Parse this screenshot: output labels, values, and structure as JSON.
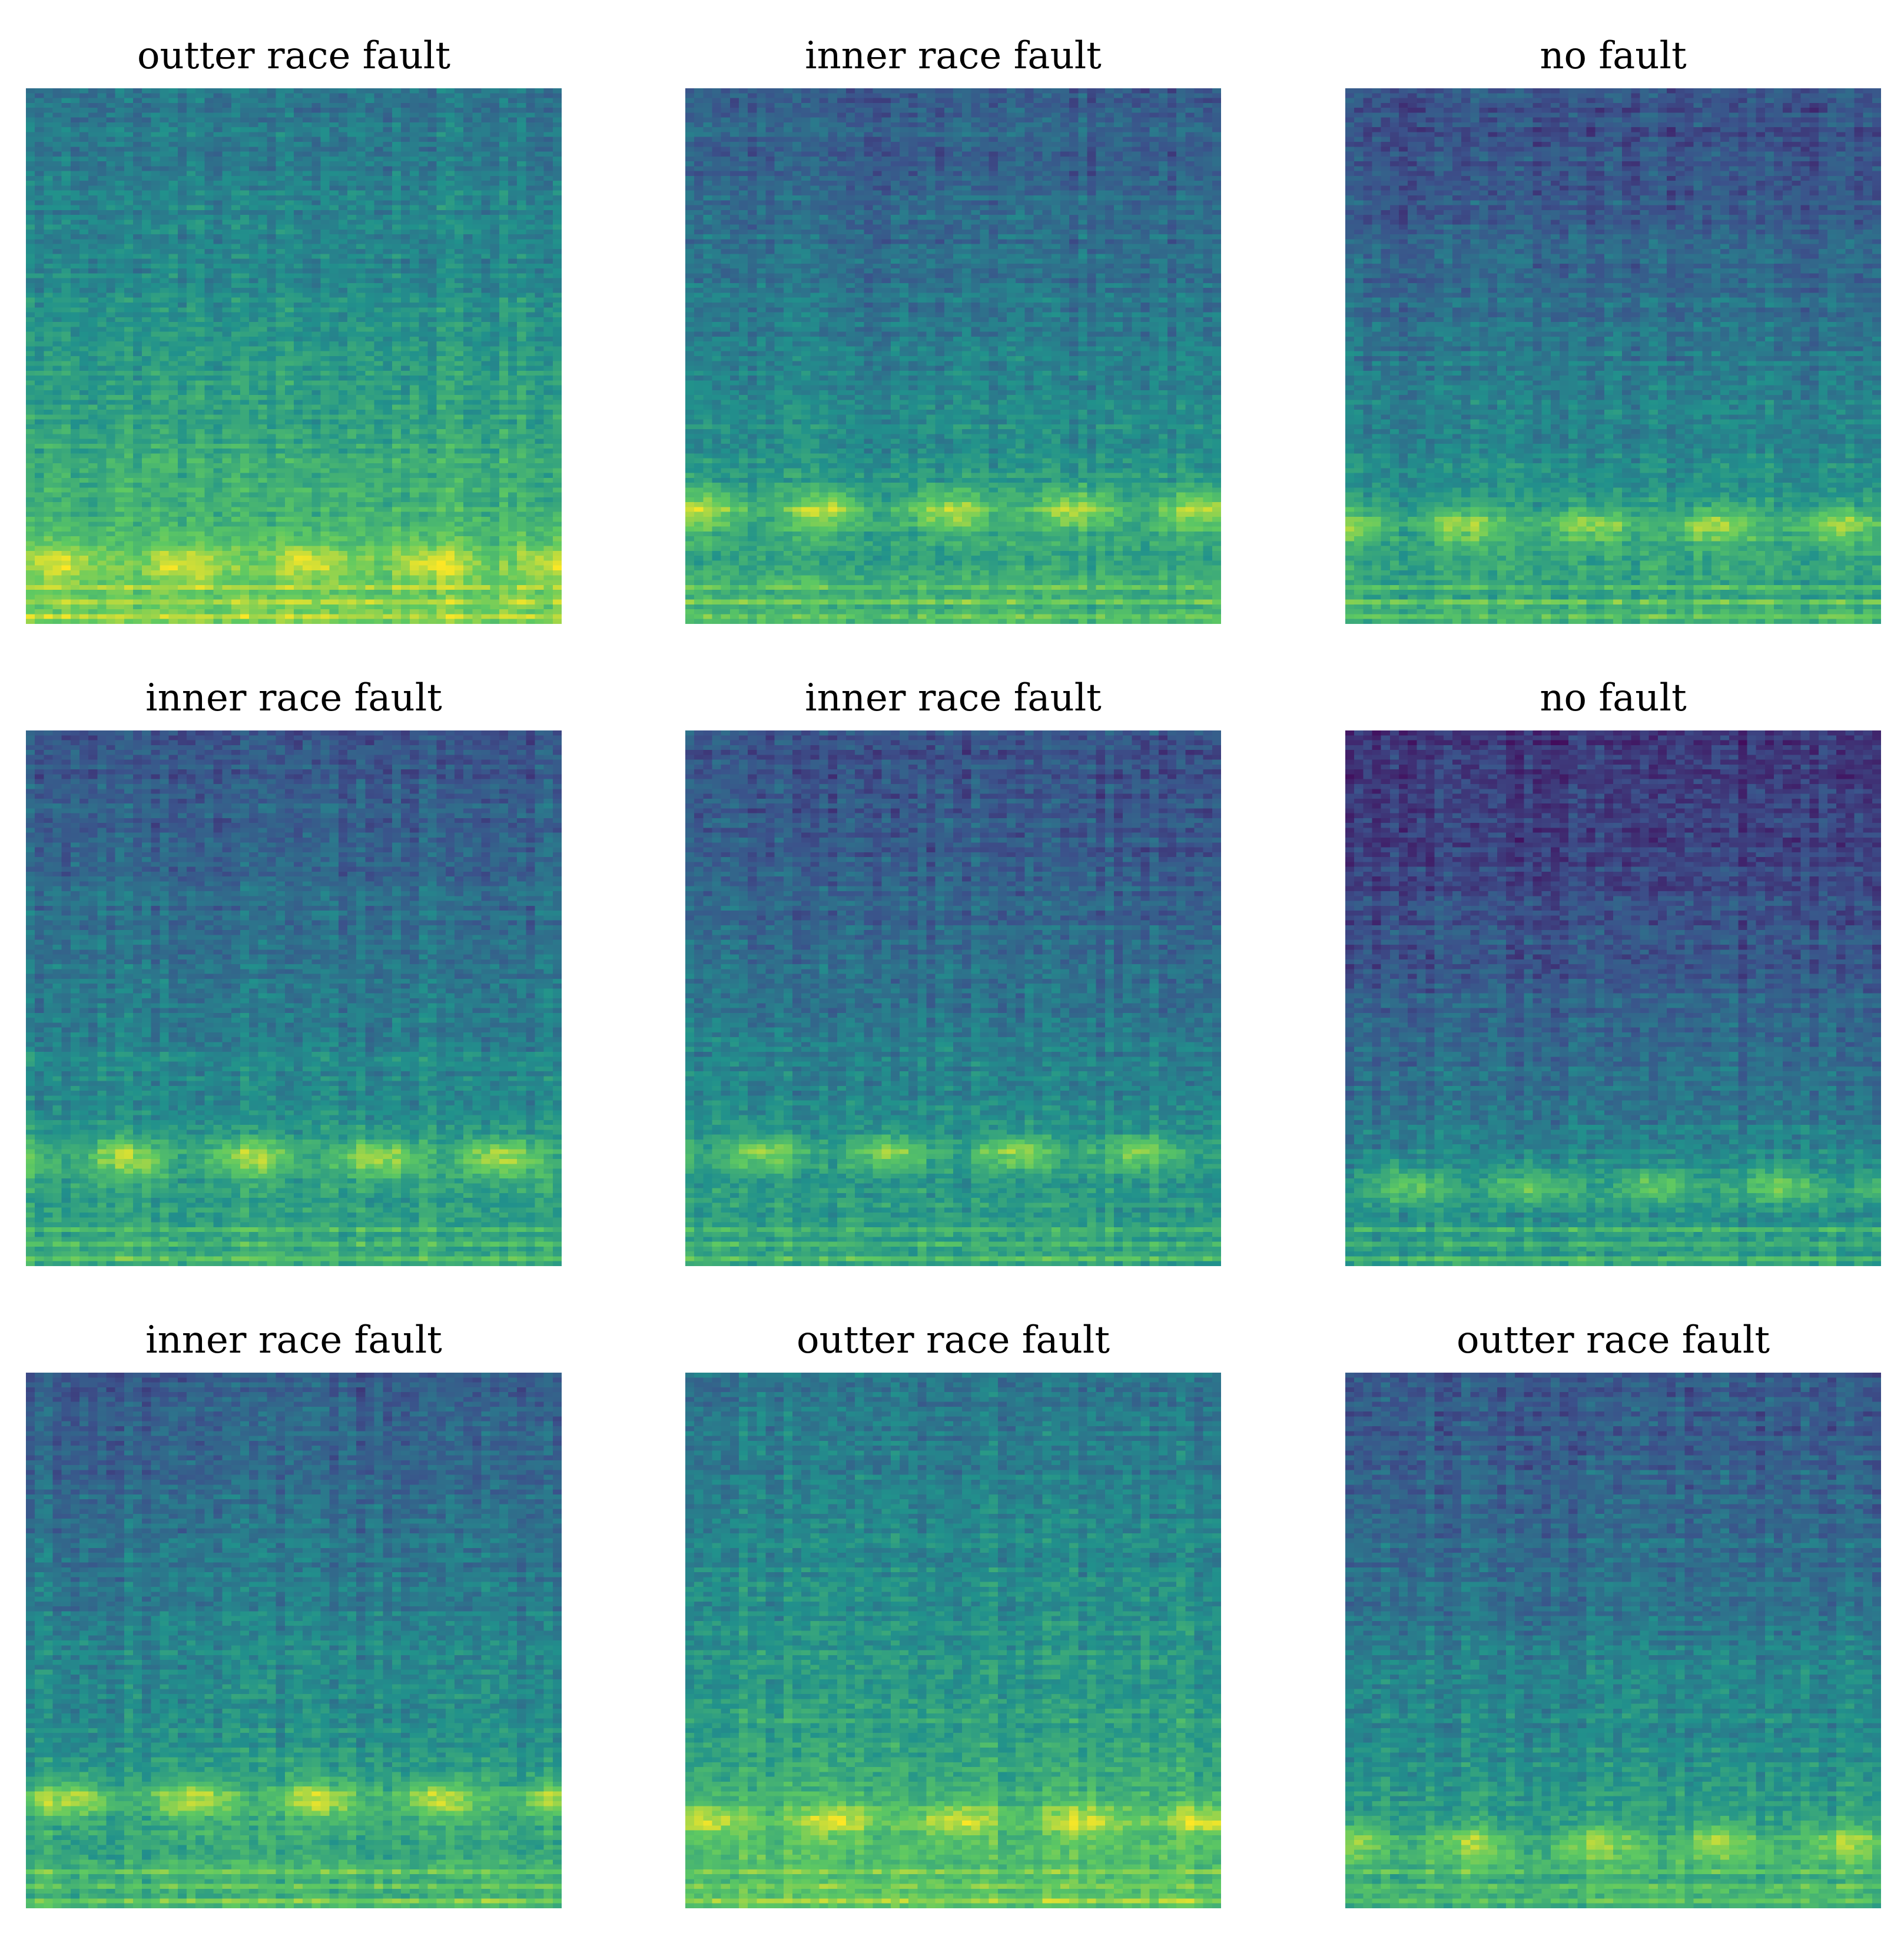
{
  "figure": {
    "panels": [
      {
        "title": "outter race fault",
        "band_row": 0.89,
        "band_strength": 0.62,
        "top_level": 0.4,
        "contrast": 0.35
      },
      {
        "title": "inner race fault",
        "band_row": 0.79,
        "band_strength": 0.85,
        "top_level": 0.3,
        "contrast": 0.35
      },
      {
        "title": "no fault",
        "band_row": 0.82,
        "band_strength": 0.72,
        "top_level": 0.25,
        "contrast": 0.38
      },
      {
        "title": "inner race fault",
        "band_row": 0.8,
        "band_strength": 0.85,
        "top_level": 0.28,
        "contrast": 0.35
      },
      {
        "title": "inner race fault",
        "band_row": 0.79,
        "band_strength": 0.8,
        "top_level": 0.25,
        "contrast": 0.35
      },
      {
        "title": "no fault",
        "band_row": 0.85,
        "band_strength": 0.65,
        "top_level": 0.15,
        "contrast": 0.4
      },
      {
        "title": "inner race fault",
        "band_row": 0.8,
        "band_strength": 0.85,
        "top_level": 0.3,
        "contrast": 0.36
      },
      {
        "title": "outter race fault",
        "band_row": 0.84,
        "band_strength": 0.7,
        "top_level": 0.4,
        "contrast": 0.32
      },
      {
        "title": "outter race fault",
        "band_row": 0.88,
        "band_strength": 0.7,
        "top_level": 0.28,
        "contrast": 0.36
      }
    ],
    "colormap": [
      "#440154",
      "#3b528b",
      "#21918c",
      "#5ec962",
      "#fde725"
    ]
  }
}
